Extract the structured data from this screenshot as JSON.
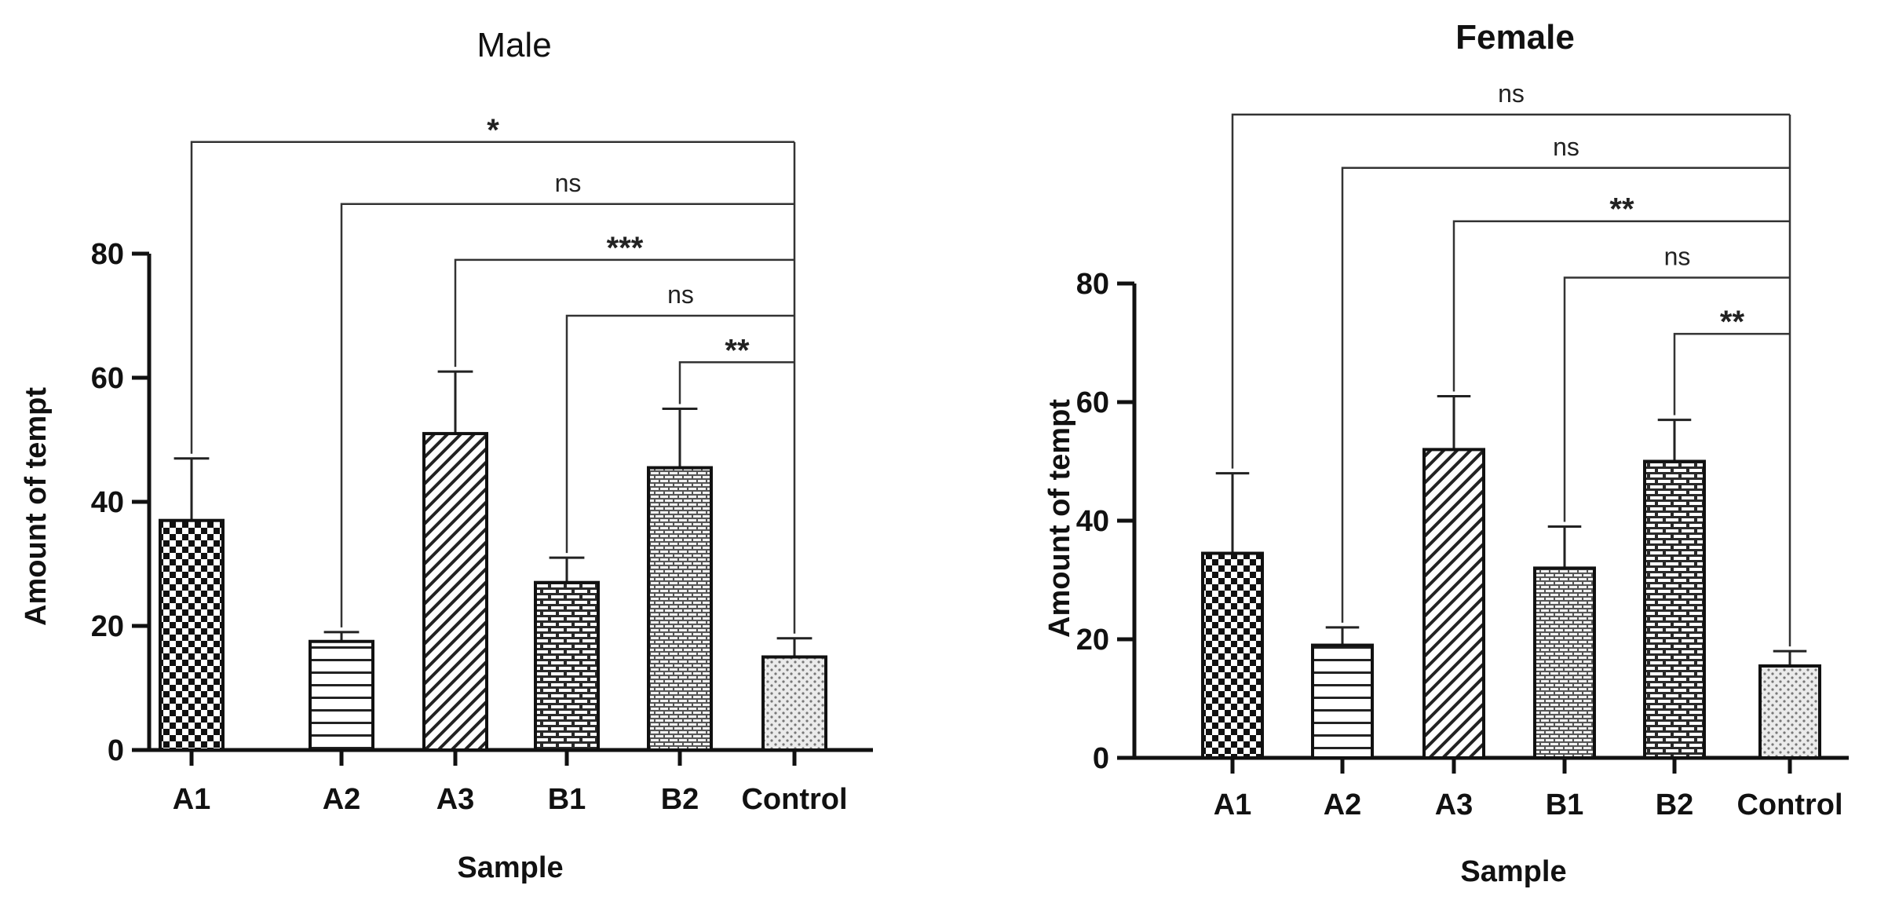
{
  "chart_data": [
    {
      "type": "bar",
      "title": "Male",
      "title_bold": false,
      "xlabel": "Sample",
      "ylabel": "Amount of tempt",
      "ylim": [
        0,
        80
      ],
      "yticks": [
        0,
        20,
        40,
        60,
        80
      ],
      "categories": [
        "A1",
        "A2",
        "A3",
        "B1",
        "B2",
        "Control"
      ],
      "values": [
        37,
        17.5,
        51,
        27,
        45.5,
        15
      ],
      "errors": [
        10,
        1.5,
        10,
        4,
        9.5,
        3
      ],
      "patterns": [
        "checker",
        "hlines",
        "diag",
        "brick",
        "finebrick",
        "dots"
      ],
      "comparisons": [
        {
          "from": "A1",
          "to": "Control",
          "label": "*",
          "level": 98
        },
        {
          "from": "A2",
          "to": "Control",
          "label": "ns",
          "level": 88
        },
        {
          "from": "A3",
          "to": "Control",
          "label": "***",
          "level": 79
        },
        {
          "from": "B1",
          "to": "Control",
          "label": "ns",
          "level": 70
        },
        {
          "from": "B2",
          "to": "Control",
          "label": "**",
          "level": 62.5
        }
      ]
    },
    {
      "type": "bar",
      "title": "Female",
      "title_bold": true,
      "xlabel": "Sample",
      "ylabel": "Amount of tempt",
      "ylim": [
        0,
        80
      ],
      "yticks": [
        0,
        20,
        40,
        60,
        80
      ],
      "categories": [
        "A1",
        "A2",
        "A3",
        "B1",
        "B2",
        "Control"
      ],
      "values": [
        34.5,
        19,
        52,
        32,
        50,
        15.5
      ],
      "errors": [
        13.5,
        3,
        9,
        7,
        7,
        2.5
      ],
      "patterns": [
        "checker",
        "hlines",
        "diag",
        "finebrick",
        "brick",
        "dots"
      ],
      "comparisons": [
        {
          "from": "A1",
          "to": "Control",
          "label": "ns",
          "level": 108.5
        },
        {
          "from": "A2",
          "to": "Control",
          "label": "ns",
          "level": 99.5
        },
        {
          "from": "A3",
          "to": "Control",
          "label": "**",
          "level": 90.5
        },
        {
          "from": "B1",
          "to": "Control",
          "label": "ns",
          "level": 81
        },
        {
          "from": "B2",
          "to": "Control",
          "label": "**",
          "level": 71.5
        }
      ]
    }
  ]
}
